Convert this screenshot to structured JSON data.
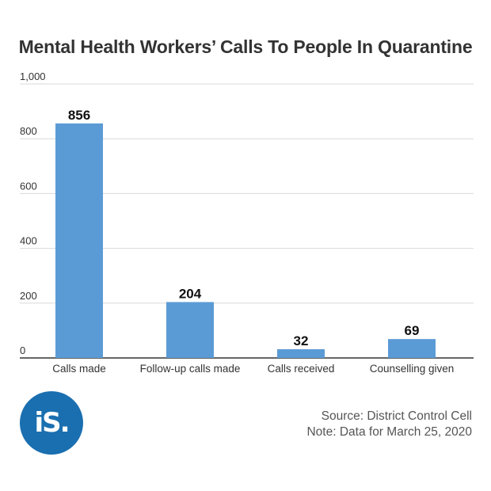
{
  "chart_data": {
    "type": "bar",
    "title": "Mental Health Workers’ Calls To People In Quarantine",
    "categories": [
      "Calls made",
      "Follow-up calls made",
      "Calls received",
      "Counselling given"
    ],
    "values": [
      856,
      204,
      32,
      69
    ],
    "ylim": [
      0,
      1000
    ],
    "yticks": [
      "0",
      "200",
      "400",
      "600",
      "800",
      "1,000"
    ],
    "ytick_values": [
      0,
      200,
      400,
      600,
      800,
      1000
    ],
    "bar_color": "#5b9bd5",
    "grid": true
  },
  "logo_text": "iS.",
  "source": "Source: District Control Cell",
  "note": "Note: Data for March 25, 2020"
}
